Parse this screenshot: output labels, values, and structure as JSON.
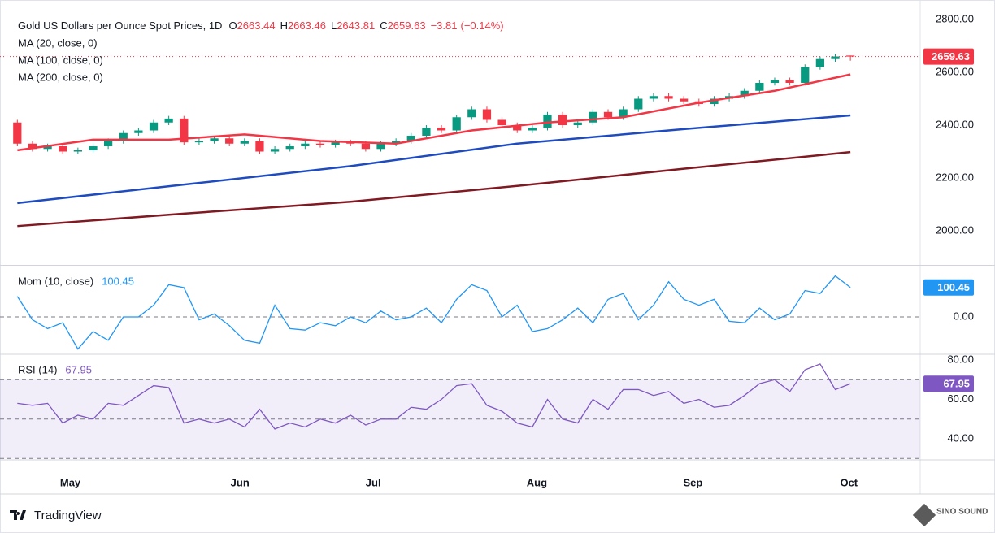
{
  "chart_data": [
    {
      "type": "candlestick",
      "title": "Gold US Dollars per Ounce Spot Prices, 1D",
      "ohlc_labels": [
        "O",
        "H",
        "L",
        "C"
      ],
      "change": {
        "value": -3.81,
        "label": "−3.81"
      },
      "change_pct": {
        "value": -0.14,
        "label": "(−0.14%)"
      },
      "up_color": "#089981",
      "down_color": "#f23645",
      "x": [
        0,
        1,
        2,
        3,
        4,
        5,
        6,
        7,
        8,
        9,
        10,
        11,
        12,
        13,
        14,
        15,
        16,
        17,
        18,
        19,
        20,
        21,
        22,
        23,
        24,
        25,
        26,
        27,
        28,
        29,
        30,
        31,
        32,
        33,
        34,
        35,
        36,
        37,
        38,
        39,
        40,
        41,
        42,
        43,
        44,
        45,
        46,
        47,
        48,
        49,
        50,
        51,
        52,
        53,
        54,
        55
      ],
      "open": [
        2410,
        2330,
        2310,
        2320,
        2300,
        2305,
        2320,
        2340,
        2370,
        2380,
        2410,
        2425,
        2335,
        2340,
        2350,
        2330,
        2340,
        2300,
        2310,
        2320,
        2330,
        2325,
        2335,
        2330,
        2310,
        2330,
        2340,
        2360,
        2390,
        2380,
        2430,
        2460,
        2420,
        2400,
        2380,
        2390,
        2440,
        2400,
        2410,
        2450,
        2430,
        2460,
        2500,
        2510,
        2500,
        2490,
        2480,
        2500,
        2510,
        2530,
        2560,
        2570,
        2560,
        2620,
        2650,
        2663.44
      ],
      "high": [
        2420,
        2340,
        2330,
        2330,
        2315,
        2330,
        2350,
        2380,
        2390,
        2420,
        2435,
        2435,
        2350,
        2360,
        2360,
        2350,
        2350,
        2320,
        2330,
        2340,
        2340,
        2345,
        2345,
        2340,
        2340,
        2350,
        2370,
        2400,
        2400,
        2440,
        2470,
        2470,
        2430,
        2410,
        2400,
        2450,
        2450,
        2420,
        2460,
        2460,
        2470,
        2510,
        2520,
        2520,
        2510,
        2500,
        2510,
        2520,
        2540,
        2570,
        2580,
        2580,
        2630,
        2660,
        2670,
        2663.46
      ],
      "low": [
        2320,
        2300,
        2300,
        2290,
        2290,
        2295,
        2310,
        2330,
        2360,
        2370,
        2400,
        2325,
        2325,
        2330,
        2320,
        2320,
        2290,
        2290,
        2300,
        2310,
        2315,
        2315,
        2320,
        2300,
        2300,
        2320,
        2330,
        2350,
        2370,
        2370,
        2420,
        2410,
        2390,
        2370,
        2370,
        2380,
        2390,
        2390,
        2400,
        2420,
        2420,
        2450,
        2490,
        2490,
        2480,
        2470,
        2470,
        2490,
        2500,
        2520,
        2550,
        2550,
        2550,
        2610,
        2640,
        2643.81
      ],
      "close": [
        2330,
        2310,
        2320,
        2300,
        2305,
        2320,
        2340,
        2370,
        2380,
        2410,
        2425,
        2335,
        2340,
        2350,
        2330,
        2340,
        2300,
        2310,
        2320,
        2330,
        2325,
        2335,
        2330,
        2310,
        2330,
        2340,
        2360,
        2390,
        2380,
        2430,
        2460,
        2420,
        2400,
        2380,
        2390,
        2440,
        2400,
        2410,
        2450,
        2430,
        2460,
        2500,
        2510,
        2500,
        2490,
        2480,
        2500,
        2510,
        2530,
        2560,
        2570,
        2560,
        2620,
        2650,
        2660,
        2659.63
      ],
      "series": [
        {
          "name": "MA (20, close, 0)",
          "color": "#f23645",
          "x": [
            0,
            5,
            10,
            15,
            20,
            25,
            30,
            35,
            40,
            45,
            50,
            55
          ],
          "values": [
            2305,
            2345,
            2345,
            2365,
            2340,
            2330,
            2380,
            2410,
            2430,
            2485,
            2530,
            2592
          ]
        },
        {
          "name": "MA (100, close, 0)",
          "color": "#1e4bbf",
          "x": [
            0,
            11,
            22,
            33,
            44,
            55
          ],
          "values": [
            2105,
            2175,
            2245,
            2330,
            2385,
            2437
          ]
        },
        {
          "name": "MA (200, close, 0)",
          "color": "#801922",
          "x": [
            0,
            11,
            22,
            33,
            44,
            55
          ],
          "values": [
            2018,
            2065,
            2110,
            2170,
            2235,
            2298
          ]
        }
      ],
      "xlim": [
        -0.5,
        59.5
      ],
      "ylim": [
        1874,
        2843
      ],
      "yticks": [
        {
          "value": 2000,
          "label": "2000.00"
        },
        {
          "value": 2200,
          "label": "2200.00"
        },
        {
          "value": 2400,
          "label": "2400.00"
        },
        {
          "value": 2600,
          "label": "2600.00"
        },
        {
          "value": 2800,
          "label": "2800.00"
        }
      ],
      "grid": false
    },
    {
      "type": "line",
      "x": [
        0,
        1,
        2,
        3,
        4,
        5,
        6,
        7,
        8,
        9,
        10,
        11,
        12,
        13,
        14,
        15,
        16,
        17,
        18,
        19,
        20,
        21,
        22,
        23,
        24,
        25,
        26,
        27,
        28,
        29,
        30,
        31,
        32,
        33,
        34,
        35,
        36,
        37,
        38,
        39,
        40,
        41,
        42,
        43,
        44,
        45,
        46,
        47,
        48,
        49,
        50,
        51,
        52,
        53,
        54,
        55
      ],
      "series": [
        {
          "name": "Mom (10, close)",
          "color": "#2196f3",
          "values": [
            70,
            -10,
            -40,
            -20,
            -110,
            -50,
            -80,
            0,
            0,
            40,
            110,
            100,
            -10,
            10,
            -30,
            -80,
            -90,
            40,
            -40,
            -45,
            -20,
            -30,
            0,
            -20,
            20,
            -10,
            0,
            30,
            -20,
            60,
            110,
            90,
            0,
            40,
            -50,
            -40,
            -10,
            30,
            -20,
            60,
            80,
            -10,
            40,
            120,
            60,
            40,
            60,
            -15,
            -20,
            30,
            -10,
            10,
            90,
            80,
            140,
            100.45
          ]
        }
      ],
      "xlim": [
        -0.5,
        59.5
      ],
      "ylim": [
        -125,
        172
      ],
      "yticks": [
        {
          "value": 0,
          "label": "0.00"
        }
      ],
      "grid": true
    },
    {
      "type": "line",
      "x": [
        0,
        1,
        2,
        3,
        4,
        5,
        6,
        7,
        8,
        9,
        10,
        11,
        12,
        13,
        14,
        15,
        16,
        17,
        18,
        19,
        20,
        21,
        22,
        23,
        24,
        25,
        26,
        27,
        28,
        29,
        30,
        31,
        32,
        33,
        34,
        35,
        36,
        37,
        38,
        39,
        40,
        41,
        42,
        43,
        44,
        45,
        46,
        47,
        48,
        49,
        50,
        51,
        52,
        53,
        54,
        55
      ],
      "series": [
        {
          "name": "RSI (14)",
          "color": "#7e57c2",
          "values": [
            58,
            57,
            58,
            48,
            52,
            50,
            58,
            57,
            62,
            67,
            66,
            48,
            50,
            48,
            50,
            46,
            55,
            45,
            48,
            46,
            50,
            48,
            52,
            47,
            50,
            50,
            56,
            55,
            60,
            67,
            68,
            57,
            54,
            48,
            46,
            60,
            50,
            48,
            60,
            55,
            65,
            65,
            62,
            64,
            58,
            60,
            56,
            57,
            62,
            68,
            70,
            64,
            75,
            78,
            65,
            67.95
          ]
        }
      ],
      "xlim": [
        -0.5,
        59.5
      ],
      "ylim": [
        29.7,
        82.5
      ],
      "yticks": [
        {
          "value": 40,
          "label": "40.00"
        },
        {
          "value": 60,
          "label": "60.00"
        },
        {
          "value": 80,
          "label": "80.00"
        }
      ],
      "hlines": [
        70,
        50,
        30
      ],
      "grid": false,
      "xticks": [
        {
          "value": 3.5,
          "label": "May"
        },
        {
          "value": 14.7,
          "label": "Jun"
        },
        {
          "value": 23.5,
          "label": "Jul"
        },
        {
          "value": 34.3,
          "label": "Aug"
        },
        {
          "value": 44.6,
          "label": "Sep"
        },
        {
          "value": 54.9,
          "label": "Oct"
        }
      ]
    }
  ],
  "branding": {
    "platform": "TradingView",
    "watermark": "SINO SOUND"
  }
}
